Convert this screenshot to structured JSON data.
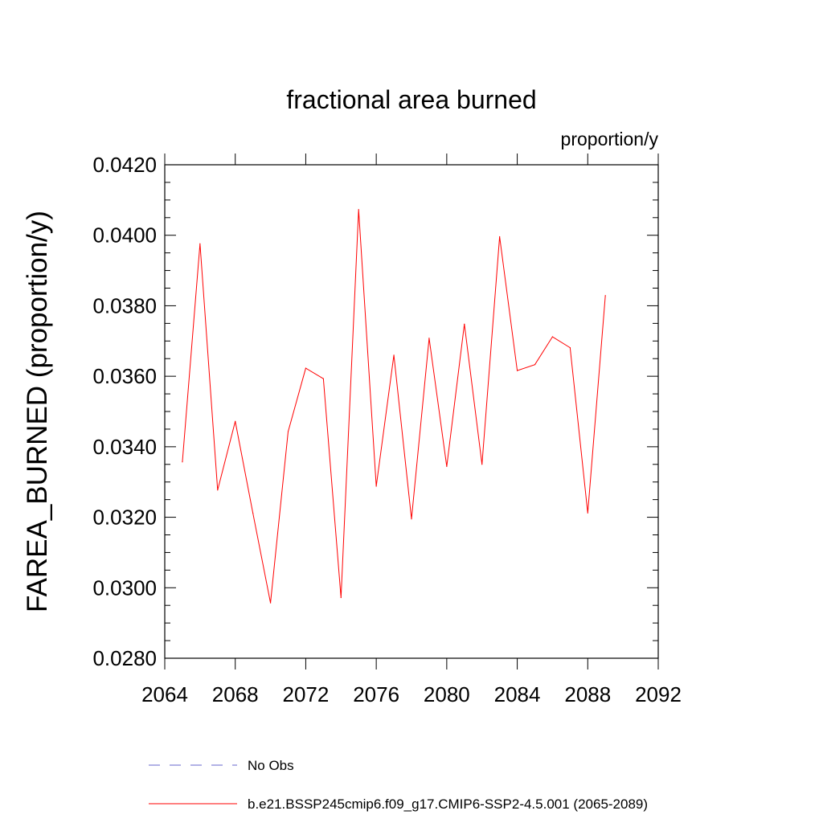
{
  "chart_data": {
    "type": "line",
    "title": "fractional area burned",
    "units": "proportion/y",
    "xlabel": "",
    "ylabel": "FAREA_BURNED  (proportion/y)",
    "xlim": [
      2064,
      2092
    ],
    "ylim": [
      0.028,
      0.042
    ],
    "x_ticks": [
      "2064",
      "2068",
      "2072",
      "2076",
      "2080",
      "2084",
      "2088",
      "2092"
    ],
    "y_ticks": [
      "0.0280",
      "0.0300",
      "0.0320",
      "0.0340",
      "0.0360",
      "0.0380",
      "0.0400",
      "0.0420"
    ],
    "grid": false,
    "legend_position": "bottom",
    "series": [
      {
        "name": "b.e21.BSSP245cmip6.f09_g17.CMIP6-SSP2-4.5.001 (2065-2089)",
        "color": "#ff0000",
        "style": "solid",
        "x": [
          2065,
          2066,
          2067,
          2068,
          2069,
          2070,
          2071,
          2072,
          2073,
          2074,
          2075,
          2076,
          2077,
          2078,
          2079,
          2080,
          2081,
          2082,
          2083,
          2084,
          2085,
          2086,
          2087,
          2088,
          2089
        ],
        "values": [
          0.03357,
          0.03976,
          0.03277,
          0.03472,
          0.03212,
          0.02957,
          0.03443,
          0.03623,
          0.03593,
          0.02972,
          0.04073,
          0.03288,
          0.0366,
          0.03195,
          0.03708,
          0.03344,
          0.03748,
          0.0335,
          0.03996,
          0.03616,
          0.03633,
          0.03712,
          0.03681,
          0.03212,
          0.03829
        ]
      }
    ],
    "legend": [
      {
        "label": "No Obs",
        "color": "#6666cc",
        "style": "dashed"
      },
      {
        "label": "b.e21.BSSP245cmip6.f09_g17.CMIP6-SSP2-4.5.001 (2065-2089)",
        "color": "#ff0000",
        "style": "solid"
      }
    ]
  }
}
